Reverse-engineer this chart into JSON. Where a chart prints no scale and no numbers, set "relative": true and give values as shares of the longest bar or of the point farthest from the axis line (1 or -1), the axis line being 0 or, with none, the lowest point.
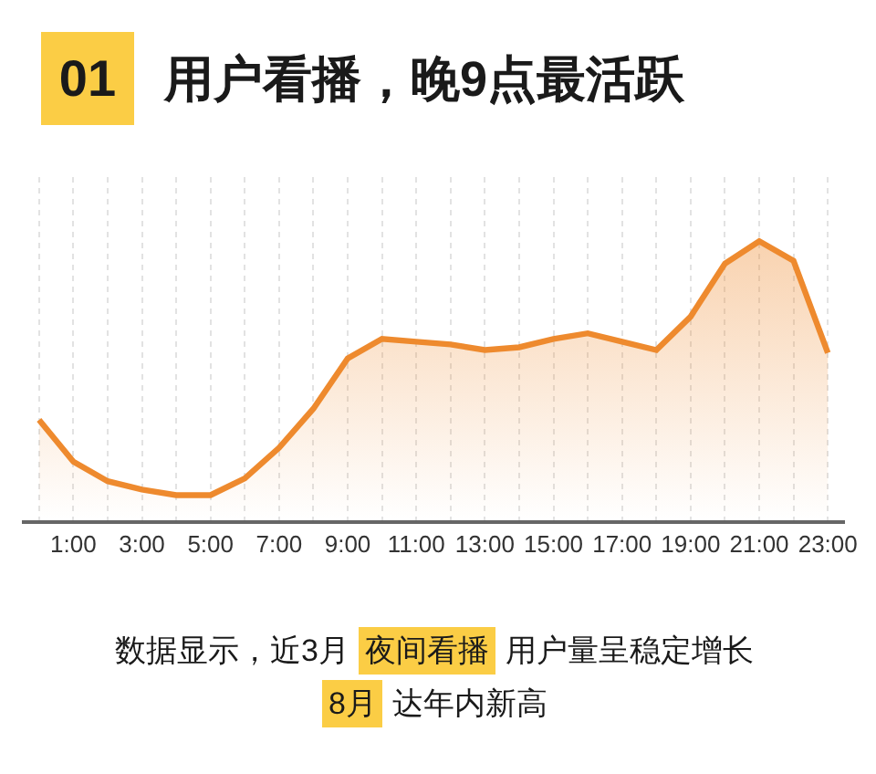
{
  "chart_data": {
    "type": "area",
    "title": "用户看播，晚9点最活跃",
    "relative": true,
    "color": "#ee8a2e",
    "x": [
      0,
      1,
      2,
      3,
      4,
      5,
      6,
      7,
      8,
      9,
      10,
      11,
      12,
      13,
      14,
      15,
      16,
      17,
      18,
      19,
      20,
      21,
      22,
      23
    ],
    "values": [
      0.36,
      0.21,
      0.14,
      0.11,
      0.09,
      0.09,
      0.15,
      0.26,
      0.4,
      0.58,
      0.65,
      0.64,
      0.63,
      0.61,
      0.62,
      0.65,
      0.67,
      0.64,
      0.61,
      0.73,
      0.92,
      1.0,
      0.93,
      0.6
    ],
    "xlim": [
      -0.5,
      23.5
    ],
    "xticks": [
      {
        "value": 0,
        "label": null
      },
      {
        "value": 1,
        "label": "1:00"
      },
      {
        "value": 2,
        "label": null
      },
      {
        "value": 3,
        "label": "3:00"
      },
      {
        "value": 4,
        "label": null
      },
      {
        "value": 5,
        "label": "5:00"
      },
      {
        "value": 6,
        "label": null
      },
      {
        "value": 7,
        "label": "7:00"
      },
      {
        "value": 8,
        "label": null
      },
      {
        "value": 9,
        "label": "9:00"
      },
      {
        "value": 10,
        "label": null
      },
      {
        "value": 11,
        "label": "11:00"
      },
      {
        "value": 12,
        "label": null
      },
      {
        "value": 13,
        "label": "13:00"
      },
      {
        "value": 14,
        "label": null
      },
      {
        "value": 15,
        "label": "15:00"
      },
      {
        "value": 16,
        "label": null
      },
      {
        "value": 17,
        "label": "17:00"
      },
      {
        "value": 18,
        "label": null
      },
      {
        "value": 19,
        "label": "19:00"
      },
      {
        "value": 20,
        "label": null
      },
      {
        "value": 21,
        "label": "21:00"
      },
      {
        "value": 22,
        "label": null
      },
      {
        "value": 23,
        "label": "23:00"
      }
    ],
    "grid": "x",
    "annotations": [
      "01",
      "数据显示，近3月",
      "夜间看播",
      "用户量呈稳定增长",
      "8月",
      "达年内新高"
    ]
  }
}
